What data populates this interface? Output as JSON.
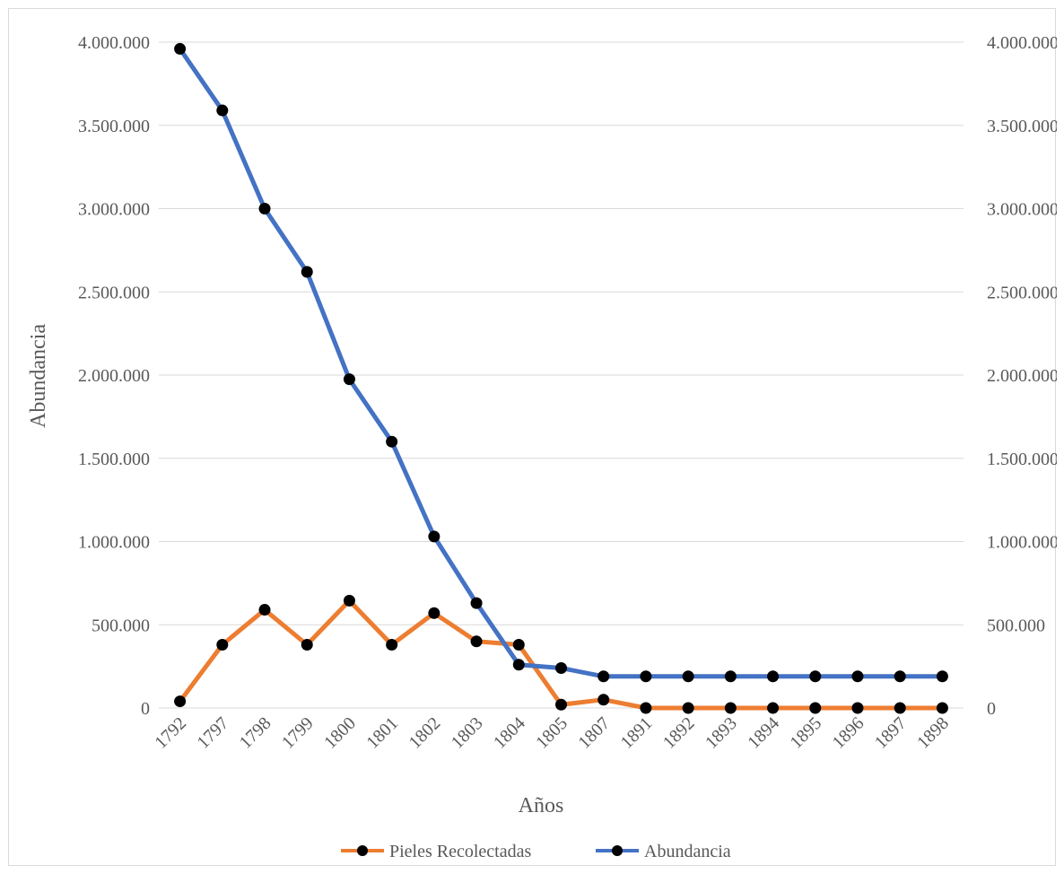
{
  "chart_data": {
    "type": "line",
    "title": "",
    "xlabel": "Años",
    "ylabel": "Abundancia",
    "ylim": [
      0,
      4000000
    ],
    "y_ticks": [
      0,
      500000,
      1000000,
      1500000,
      2000000,
      2500000,
      3000000,
      3500000,
      4000000
    ],
    "y_tick_labels": [
      "0",
      "500.000",
      "1.000.000",
      "1.500.000",
      "2.000.000",
      "2.500.000",
      "3.000.000",
      "3.500.000",
      "4.000.000"
    ],
    "y2_tick_labels": [
      "0",
      "500.000",
      "1.000.000",
      "1.500.000",
      "2.000.000",
      "2.500.000",
      "3.000.000",
      "3.500.000",
      "4.000.000"
    ],
    "grid": true,
    "legend_position": "bottom",
    "categories": [
      "1792",
      "1797",
      "1798",
      "1799",
      "1800",
      "1801",
      "1802",
      "1803",
      "1804",
      "1805",
      "1807",
      "1891",
      "1892",
      "1893",
      "1894",
      "1895",
      "1896",
      "1897",
      "1898"
    ],
    "series": [
      {
        "name": "Pieles Recolectadas",
        "color": "#ED7D31",
        "marker_color": "#000000",
        "values": [
          40000,
          380000,
          590000,
          380000,
          645000,
          380000,
          570000,
          400000,
          380000,
          20000,
          50000,
          0,
          0,
          0,
          0,
          0,
          0,
          0,
          0
        ]
      },
      {
        "name": "Abundancia",
        "color": "#4472C4",
        "marker_color": "#000000",
        "values": [
          3960000,
          3590000,
          3000000,
          2620000,
          1975000,
          1600000,
          1030000,
          630000,
          260000,
          240000,
          190000,
          190000,
          190000,
          190000,
          190000,
          190000,
          190000,
          190000,
          190000
        ]
      }
    ]
  }
}
